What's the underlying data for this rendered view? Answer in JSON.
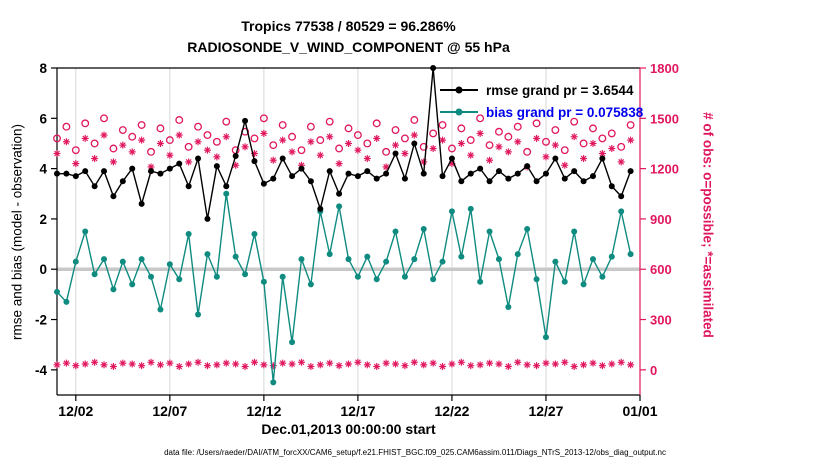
{
  "header": {
    "title_line1": "Tropics 77538 / 80529 = 96.286%",
    "title_line2": "RADIOSONDE_V_WIND_COMPONENT @ 55 hPa"
  },
  "axes": {
    "xlabel": "Dec.01,2013 00:00:00 start",
    "ylabel_left": "rmse and bias (model - observation)",
    "ylabel_right": "# of obs: o=possible; *=assimilated"
  },
  "caption": "data file: /Users/raeder/DAI/ATM_forcXX/CAM6_setup/f.e21.FHIST_BGC.f09_025.CAM6assim.011/Diags_NTrS_2013-12/obs_diag_output.nc",
  "legend": [
    {
      "label": "rmse grand pr = 3.6544",
      "line_color": "#000000",
      "text_color": "#000000"
    },
    {
      "label": "bias grand pr = 0.075838",
      "line_color": "#0f8b80",
      "text_color": "#0000ee"
    }
  ],
  "colors": {
    "rmse": "#000000",
    "bias": "#0f8b80",
    "counts": "#e0175f",
    "bias_legend_text": "#0000ee",
    "zero_line": "#c8c8c8",
    "grid": "#d8d8d8"
  },
  "chart_data": {
    "type": "line",
    "title": "Tropics 77538 / 80529 = 96.286% | RADIOSONDE_V_WIND_COMPONENT @ 55 hPa",
    "grid": "vertical gridlines only, thick gray horizontal line at zero",
    "legend_position": "upper right inside plot, no border",
    "x": {
      "min": 1,
      "max": 32,
      "tick_days": [
        2,
        7,
        12,
        17,
        22,
        27,
        32
      ],
      "tick_labels": [
        "12/02",
        "12/07",
        "12/12",
        "12/17",
        "12/22",
        "12/27",
        "01/01"
      ],
      "values": [
        1,
        1.5,
        2,
        2.5,
        3,
        3.5,
        4,
        4.5,
        5,
        5.5,
        6,
        6.5,
        7,
        7.5,
        8,
        8.5,
        9,
        9.5,
        10,
        10.5,
        11,
        11.5,
        12,
        12.5,
        13,
        13.5,
        14,
        14.5,
        15,
        15.5,
        16,
        16.5,
        17,
        17.5,
        18,
        18.5,
        19,
        19.5,
        20,
        20.5,
        21,
        21.5,
        22,
        22.5,
        23,
        23.5,
        24,
        24.5,
        25,
        25.5,
        26,
        26.5,
        27,
        27.5,
        28,
        28.5,
        29,
        29.5,
        30,
        30.5,
        31,
        31.5
      ]
    },
    "y_left": {
      "min": -5,
      "max": 8,
      "ticks": [
        -4,
        -2,
        0,
        2,
        4,
        6,
        8
      ]
    },
    "y_right": {
      "min": -150,
      "max": 1800,
      "ticks": [
        0,
        300,
        600,
        900,
        1200,
        1500,
        1800
      ]
    },
    "series": [
      {
        "name": "possible",
        "axis": "right",
        "color": "#e0175f",
        "marker": "circle",
        "line": false,
        "values": [
          1380,
          1450,
          1310,
          1470,
          1350,
          1500,
          1320,
          1430,
          1390,
          1460,
          1300,
          1440,
          1370,
          1490,
          1330,
          1450,
          1400,
          1360,
          1480,
          1310,
          1420,
          1380,
          1500,
          1340,
          1460,
          1390,
          1310,
          1450,
          1370,
          1480,
          1320,
          1440,
          1400,
          1350,
          1470,
          1300,
          1430,
          1380,
          1490,
          1330,
          1410,
          1460,
          1320,
          1440,
          1370,
          1500,
          1340,
          1420,
          1390,
          1450,
          1300,
          1470,
          1360,
          1430,
          1310,
          1480,
          1350,
          1440,
          1380,
          1410,
          1330,
          1460
        ]
      },
      {
        "name": "assimilated",
        "axis": "right",
        "color": "#e0175f",
        "marker": "asterisk",
        "line": false,
        "values": [
          1290,
          1360,
          1230,
          1380,
          1260,
          1400,
          1240,
          1340,
          1300,
          1370,
          1210,
          1350,
          1280,
          1400,
          1240,
          1360,
          1310,
          1270,
          1390,
          1220,
          1330,
          1290,
          1410,
          1250,
          1370,
          1300,
          1220,
          1360,
          1280,
          1390,
          1230,
          1350,
          1310,
          1260,
          1380,
          1210,
          1340,
          1290,
          1400,
          1240,
          1320,
          1370,
          1230,
          1350,
          1280,
          1410,
          1250,
          1330,
          1300,
          1360,
          1210,
          1380,
          1270,
          1340,
          1220,
          1390,
          1260,
          1350,
          1290,
          1320,
          1240,
          1370
        ]
      },
      {
        "name": "counts-near-zero",
        "axis": "right",
        "color": "#e0175f",
        "marker": "asterisk",
        "line": false,
        "values": [
          30,
          40,
          25,
          35,
          45,
          30,
          20,
          40,
          35,
          25,
          45,
          30,
          40,
          20,
          35,
          45,
          25,
          30,
          40,
          35,
          20,
          45,
          30,
          25,
          40,
          35,
          45,
          20,
          30,
          40,
          25,
          35,
          45,
          30,
          20,
          40,
          35,
          25,
          45,
          30,
          40,
          20,
          35,
          45,
          25,
          30,
          40,
          35,
          20,
          45,
          30,
          25,
          40,
          35,
          45,
          20,
          30,
          40,
          25,
          35,
          45,
          30
        ]
      },
      {
        "name": "bias",
        "axis": "left",
        "color": "#0f8b80",
        "marker": "dot",
        "line": true,
        "values": [
          -0.9,
          -1.3,
          0.3,
          1.5,
          -0.2,
          0.4,
          -0.8,
          0.3,
          -0.6,
          0.4,
          -0.3,
          -1.6,
          0.2,
          -0.4,
          1.4,
          -1.8,
          0.6,
          -0.3,
          3.0,
          0.5,
          -0.2,
          1.4,
          -0.5,
          -4.5,
          -0.3,
          -2.9,
          0.4,
          -0.6,
          2.3,
          0.6,
          2.5,
          0.4,
          -0.3,
          0.5,
          -0.4,
          0.3,
          1.5,
          -0.3,
          0.4,
          1.6,
          -0.4,
          0.3,
          2.3,
          0.5,
          2.4,
          -0.5,
          1.5,
          0.4,
          -1.5,
          0.6,
          1.6,
          -0.4,
          -2.7,
          0.3,
          -0.5,
          1.5,
          -0.6,
          0.4,
          -0.3,
          0.5,
          2.3,
          0.6
        ]
      },
      {
        "name": "rmse",
        "axis": "left",
        "color": "#000000",
        "marker": "dot",
        "line": true,
        "values": [
          3.8,
          3.8,
          3.7,
          3.9,
          3.3,
          3.9,
          2.9,
          3.5,
          4.0,
          2.6,
          3.9,
          3.8,
          4.0,
          4.2,
          3.3,
          4.4,
          2.0,
          4.1,
          3.3,
          4.5,
          5.9,
          4.3,
          3.4,
          3.6,
          4.4,
          3.7,
          4.0,
          3.5,
          2.4,
          3.9,
          3.0,
          3.8,
          3.7,
          3.9,
          3.6,
          3.8,
          4.6,
          3.6,
          5.0,
          3.8,
          8.0,
          3.7,
          4.4,
          3.5,
          3.8,
          4.0,
          3.5,
          3.9,
          3.6,
          3.8,
          4.1,
          3.5,
          3.8,
          4.4,
          3.6,
          3.9,
          3.5,
          3.7,
          4.4,
          3.3,
          2.9,
          3.9
        ]
      }
    ]
  }
}
